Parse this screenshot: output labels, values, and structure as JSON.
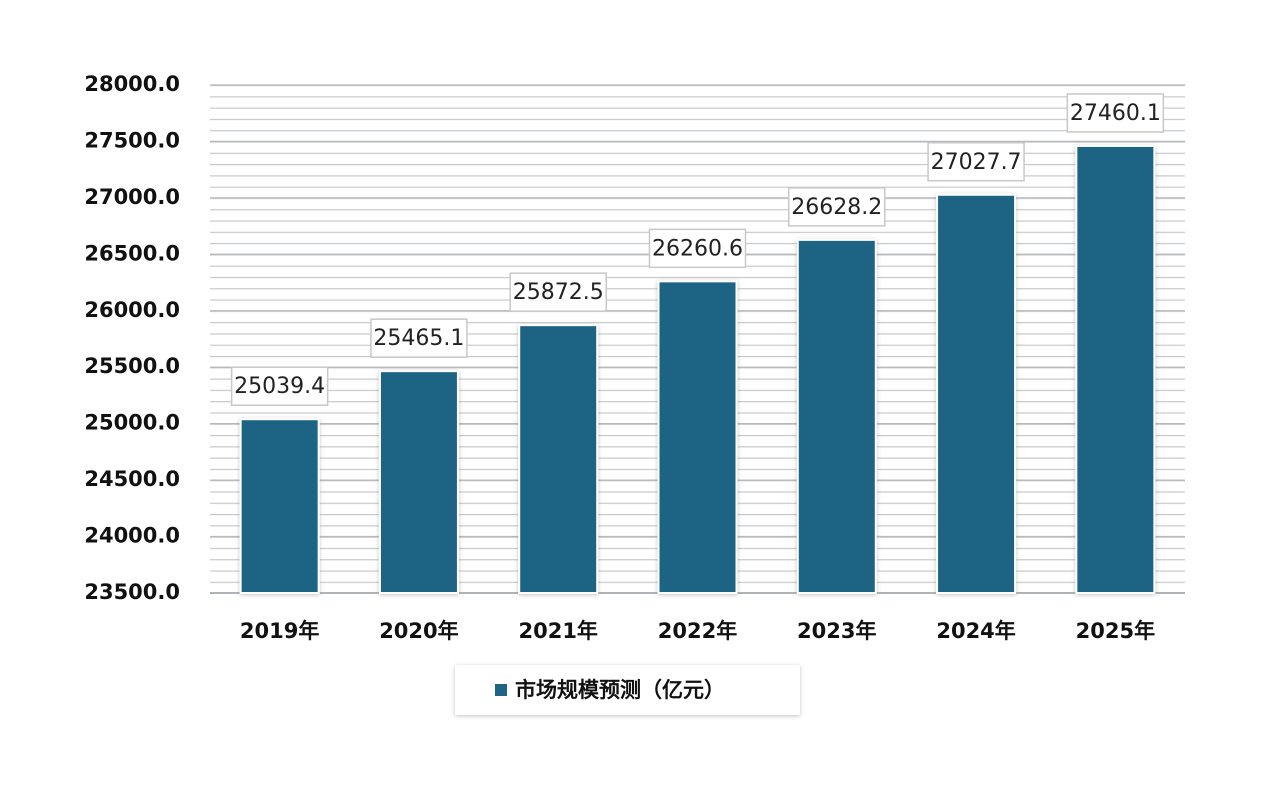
{
  "chart_data": {
    "type": "bar",
    "categories": [
      "2019年",
      "2020年",
      "2021年",
      "2022年",
      "2023年",
      "2024年",
      "2025年"
    ],
    "series": [
      {
        "name": "市场规模预测（亿元）",
        "color": "#1e6484",
        "values": [
          25039.4,
          25465.1,
          25872.5,
          26260.6,
          26628.2,
          27027.7,
          27460.1
        ],
        "value_labels": [
          "25039.4",
          "25465.1",
          "25872.5",
          "26260.6",
          "26628.2",
          "27027.7",
          "27460.1"
        ]
      }
    ],
    "ylim": [
      23500,
      28000
    ],
    "yticks": [
      {
        "value": 23500,
        "label": "23500.0"
      },
      {
        "value": 24000,
        "label": "24000.0"
      },
      {
        "value": 24500,
        "label": "24500.0"
      },
      {
        "value": 25000,
        "label": "25000.0"
      },
      {
        "value": 25500,
        "label": "25500.0"
      },
      {
        "value": 26000,
        "label": "26000.0"
      },
      {
        "value": 26500,
        "label": "26500.0"
      },
      {
        "value": 27000,
        "label": "27000.0"
      },
      {
        "value": 27500,
        "label": "27500.0"
      },
      {
        "value": 28000,
        "label": "28000.0"
      }
    ],
    "grid": true,
    "legend": "bottom"
  }
}
